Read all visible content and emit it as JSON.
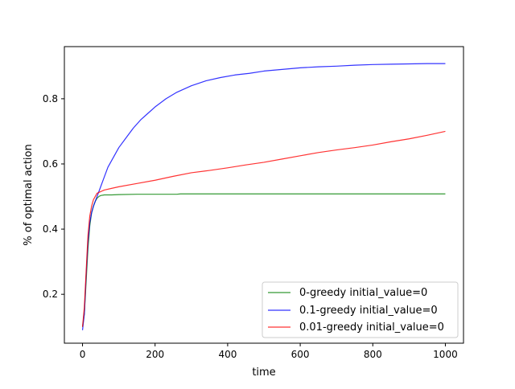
{
  "chart_data": {
    "type": "line",
    "title": "",
    "xlabel": "time",
    "ylabel": "% of optimal action",
    "xlim": [
      -50,
      1050
    ],
    "ylim": [
      0.05,
      0.96
    ],
    "xticks": [
      0,
      200,
      400,
      600,
      800,
      1000
    ],
    "yticks": [
      0.2,
      0.4,
      0.6,
      0.8
    ],
    "ytick_labels": [
      "0.2",
      "0.4",
      "0.6",
      "0.8"
    ],
    "xtick_labels": [
      "0",
      "200",
      "400",
      "600",
      "800",
      "1000"
    ],
    "grid": false,
    "legend": "lower-right",
    "series": [
      {
        "name": "0-greedy initial_value=0",
        "color": "#008000",
        "x": [
          0,
          5,
          10,
          15,
          20,
          25,
          30,
          35,
          40,
          45,
          50,
          60,
          70,
          80,
          100,
          150,
          200,
          260,
          270,
          300,
          400,
          500,
          600,
          700,
          800,
          900,
          1000
        ],
        "y": [
          0.1,
          0.14,
          0.24,
          0.34,
          0.41,
          0.45,
          0.47,
          0.485,
          0.495,
          0.5,
          0.503,
          0.505,
          0.505,
          0.505,
          0.506,
          0.507,
          0.507,
          0.507,
          0.508,
          0.508,
          0.508,
          0.508,
          0.508,
          0.508,
          0.508,
          0.508,
          0.508
        ]
      },
      {
        "name": "0.1-greedy initial_value=0",
        "color": "#0000ff",
        "x": [
          0,
          5,
          10,
          15,
          20,
          25,
          30,
          40,
          50,
          60,
          70,
          80,
          90,
          100,
          120,
          140,
          160,
          180,
          200,
          230,
          260,
          300,
          340,
          380,
          420,
          460,
          500,
          550,
          600,
          650,
          700,
          750,
          800,
          850,
          900,
          950,
          1000
        ],
        "y": [
          0.09,
          0.14,
          0.26,
          0.36,
          0.42,
          0.45,
          0.47,
          0.5,
          0.53,
          0.56,
          0.59,
          0.61,
          0.63,
          0.65,
          0.68,
          0.71,
          0.735,
          0.755,
          0.775,
          0.8,
          0.82,
          0.84,
          0.855,
          0.865,
          0.873,
          0.878,
          0.885,
          0.89,
          0.895,
          0.898,
          0.9,
          0.903,
          0.905,
          0.906,
          0.907,
          0.908,
          0.908
        ]
      },
      {
        "name": "0.01-greedy initial_value=0",
        "color": "#ff0000",
        "x": [
          0,
          5,
          10,
          15,
          20,
          25,
          30,
          40,
          50,
          60,
          80,
          100,
          150,
          200,
          250,
          300,
          350,
          400,
          450,
          500,
          550,
          600,
          650,
          700,
          750,
          800,
          850,
          900,
          950,
          1000
        ],
        "y": [
          0.1,
          0.16,
          0.27,
          0.38,
          0.44,
          0.47,
          0.49,
          0.51,
          0.515,
          0.52,
          0.525,
          0.53,
          0.54,
          0.55,
          0.562,
          0.573,
          0.58,
          0.588,
          0.597,
          0.605,
          0.615,
          0.625,
          0.635,
          0.643,
          0.65,
          0.658,
          0.668,
          0.677,
          0.688,
          0.7
        ]
      }
    ]
  }
}
